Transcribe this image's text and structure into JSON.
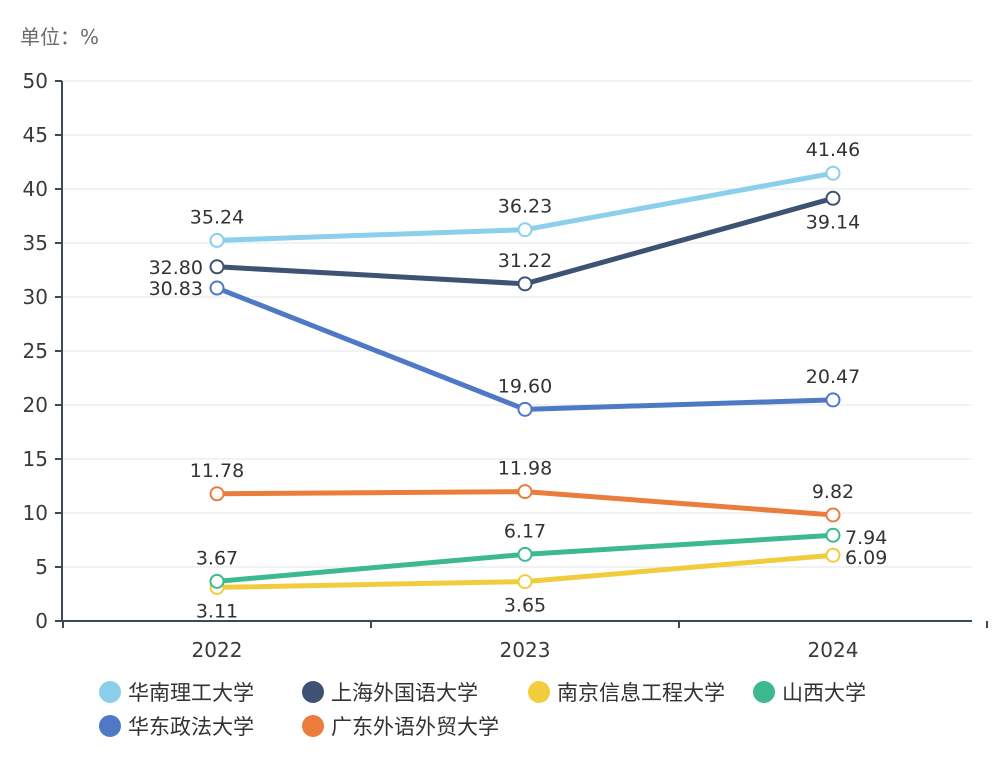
{
  "chart_data": {
    "type": "line",
    "unit_label": "单位：%",
    "categories": [
      "2022",
      "2023",
      "2024"
    ],
    "ylim": [
      0,
      50
    ],
    "yticks": [
      0,
      5,
      10,
      15,
      20,
      25,
      30,
      35,
      40,
      45,
      50
    ],
    "grid": true,
    "legend_position": "bottom",
    "series": [
      {
        "name": "华南理工大学",
        "color": "#8ccfec",
        "values": [
          35.24,
          36.23,
          41.46
        ],
        "labels": [
          "35.24",
          "36.23",
          "41.46"
        ],
        "label_pos": [
          "above",
          "above",
          "above"
        ]
      },
      {
        "name": "上海外国语大学",
        "color": "#3e5274",
        "values": [
          32.8,
          31.22,
          39.14
        ],
        "labels": [
          "32.80",
          "31.22",
          "39.14"
        ],
        "label_pos": [
          "left",
          "above",
          "below"
        ]
      },
      {
        "name": "南京信息工程大学",
        "color": "#f1cd3e",
        "values": [
          3.11,
          3.65,
          6.09
        ],
        "labels": [
          "3.11",
          "3.65",
          "6.09"
        ],
        "label_pos": [
          "below",
          "below",
          "right"
        ]
      },
      {
        "name": "山西大学",
        "color": "#3db98e",
        "values": [
          3.67,
          6.17,
          7.94
        ],
        "labels": [
          "3.67",
          "6.17",
          "7.94"
        ],
        "label_pos": [
          "above",
          "above",
          "right"
        ]
      },
      {
        "name": "华东政法大学",
        "color": "#4f79c4",
        "values": [
          30.83,
          19.6,
          20.47
        ],
        "labels": [
          "30.83",
          "19.60",
          "20.47"
        ],
        "label_pos": [
          "left",
          "above",
          "above"
        ]
      },
      {
        "name": "广东外语外贸大学",
        "color": "#ea7c3c",
        "values": [
          11.78,
          11.98,
          9.82
        ],
        "labels": [
          "11.78",
          "11.98",
          "9.82"
        ],
        "label_pos": [
          "above",
          "above",
          "above"
        ]
      }
    ]
  }
}
